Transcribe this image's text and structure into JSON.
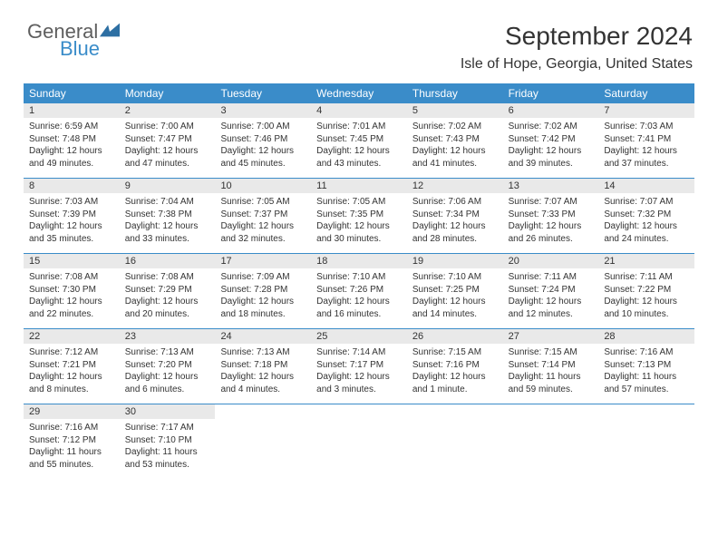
{
  "brand": {
    "word1": "General",
    "word2": "Blue",
    "color_general": "#5e5e5e",
    "color_blue": "#3a8cc9",
    "icon_fill": "#2d6fa3"
  },
  "header": {
    "month_title": "September 2024",
    "location": "Isle of Hope, Georgia, United States"
  },
  "colors": {
    "header_bg": "#3a8cc9",
    "header_text": "#ffffff",
    "daynum_bg": "#e9e9e9",
    "row_border": "#3a8cc9",
    "body_text": "#333333",
    "page_bg": "#ffffff"
  },
  "typography": {
    "month_title_fontsize": 28,
    "location_fontsize": 16,
    "dow_fontsize": 12,
    "daynum_fontsize": 11,
    "body_fontsize": 10
  },
  "days_of_week": [
    "Sunday",
    "Monday",
    "Tuesday",
    "Wednesday",
    "Thursday",
    "Friday",
    "Saturday"
  ],
  "weeks": [
    [
      {
        "n": "1",
        "sunrise": "Sunrise: 6:59 AM",
        "sunset": "Sunset: 7:48 PM",
        "day1": "Daylight: 12 hours",
        "day2": "and 49 minutes."
      },
      {
        "n": "2",
        "sunrise": "Sunrise: 7:00 AM",
        "sunset": "Sunset: 7:47 PM",
        "day1": "Daylight: 12 hours",
        "day2": "and 47 minutes."
      },
      {
        "n": "3",
        "sunrise": "Sunrise: 7:00 AM",
        "sunset": "Sunset: 7:46 PM",
        "day1": "Daylight: 12 hours",
        "day2": "and 45 minutes."
      },
      {
        "n": "4",
        "sunrise": "Sunrise: 7:01 AM",
        "sunset": "Sunset: 7:45 PM",
        "day1": "Daylight: 12 hours",
        "day2": "and 43 minutes."
      },
      {
        "n": "5",
        "sunrise": "Sunrise: 7:02 AM",
        "sunset": "Sunset: 7:43 PM",
        "day1": "Daylight: 12 hours",
        "day2": "and 41 minutes."
      },
      {
        "n": "6",
        "sunrise": "Sunrise: 7:02 AM",
        "sunset": "Sunset: 7:42 PM",
        "day1": "Daylight: 12 hours",
        "day2": "and 39 minutes."
      },
      {
        "n": "7",
        "sunrise": "Sunrise: 7:03 AM",
        "sunset": "Sunset: 7:41 PM",
        "day1": "Daylight: 12 hours",
        "day2": "and 37 minutes."
      }
    ],
    [
      {
        "n": "8",
        "sunrise": "Sunrise: 7:03 AM",
        "sunset": "Sunset: 7:39 PM",
        "day1": "Daylight: 12 hours",
        "day2": "and 35 minutes."
      },
      {
        "n": "9",
        "sunrise": "Sunrise: 7:04 AM",
        "sunset": "Sunset: 7:38 PM",
        "day1": "Daylight: 12 hours",
        "day2": "and 33 minutes."
      },
      {
        "n": "10",
        "sunrise": "Sunrise: 7:05 AM",
        "sunset": "Sunset: 7:37 PM",
        "day1": "Daylight: 12 hours",
        "day2": "and 32 minutes."
      },
      {
        "n": "11",
        "sunrise": "Sunrise: 7:05 AM",
        "sunset": "Sunset: 7:35 PM",
        "day1": "Daylight: 12 hours",
        "day2": "and 30 minutes."
      },
      {
        "n": "12",
        "sunrise": "Sunrise: 7:06 AM",
        "sunset": "Sunset: 7:34 PM",
        "day1": "Daylight: 12 hours",
        "day2": "and 28 minutes."
      },
      {
        "n": "13",
        "sunrise": "Sunrise: 7:07 AM",
        "sunset": "Sunset: 7:33 PM",
        "day1": "Daylight: 12 hours",
        "day2": "and 26 minutes."
      },
      {
        "n": "14",
        "sunrise": "Sunrise: 7:07 AM",
        "sunset": "Sunset: 7:32 PM",
        "day1": "Daylight: 12 hours",
        "day2": "and 24 minutes."
      }
    ],
    [
      {
        "n": "15",
        "sunrise": "Sunrise: 7:08 AM",
        "sunset": "Sunset: 7:30 PM",
        "day1": "Daylight: 12 hours",
        "day2": "and 22 minutes."
      },
      {
        "n": "16",
        "sunrise": "Sunrise: 7:08 AM",
        "sunset": "Sunset: 7:29 PM",
        "day1": "Daylight: 12 hours",
        "day2": "and 20 minutes."
      },
      {
        "n": "17",
        "sunrise": "Sunrise: 7:09 AM",
        "sunset": "Sunset: 7:28 PM",
        "day1": "Daylight: 12 hours",
        "day2": "and 18 minutes."
      },
      {
        "n": "18",
        "sunrise": "Sunrise: 7:10 AM",
        "sunset": "Sunset: 7:26 PM",
        "day1": "Daylight: 12 hours",
        "day2": "and 16 minutes."
      },
      {
        "n": "19",
        "sunrise": "Sunrise: 7:10 AM",
        "sunset": "Sunset: 7:25 PM",
        "day1": "Daylight: 12 hours",
        "day2": "and 14 minutes."
      },
      {
        "n": "20",
        "sunrise": "Sunrise: 7:11 AM",
        "sunset": "Sunset: 7:24 PM",
        "day1": "Daylight: 12 hours",
        "day2": "and 12 minutes."
      },
      {
        "n": "21",
        "sunrise": "Sunrise: 7:11 AM",
        "sunset": "Sunset: 7:22 PM",
        "day1": "Daylight: 12 hours",
        "day2": "and 10 minutes."
      }
    ],
    [
      {
        "n": "22",
        "sunrise": "Sunrise: 7:12 AM",
        "sunset": "Sunset: 7:21 PM",
        "day1": "Daylight: 12 hours",
        "day2": "and 8 minutes."
      },
      {
        "n": "23",
        "sunrise": "Sunrise: 7:13 AM",
        "sunset": "Sunset: 7:20 PM",
        "day1": "Daylight: 12 hours",
        "day2": "and 6 minutes."
      },
      {
        "n": "24",
        "sunrise": "Sunrise: 7:13 AM",
        "sunset": "Sunset: 7:18 PM",
        "day1": "Daylight: 12 hours",
        "day2": "and 4 minutes."
      },
      {
        "n": "25",
        "sunrise": "Sunrise: 7:14 AM",
        "sunset": "Sunset: 7:17 PM",
        "day1": "Daylight: 12 hours",
        "day2": "and 3 minutes."
      },
      {
        "n": "26",
        "sunrise": "Sunrise: 7:15 AM",
        "sunset": "Sunset: 7:16 PM",
        "day1": "Daylight: 12 hours",
        "day2": "and 1 minute."
      },
      {
        "n": "27",
        "sunrise": "Sunrise: 7:15 AM",
        "sunset": "Sunset: 7:14 PM",
        "day1": "Daylight: 11 hours",
        "day2": "and 59 minutes."
      },
      {
        "n": "28",
        "sunrise": "Sunrise: 7:16 AM",
        "sunset": "Sunset: 7:13 PM",
        "day1": "Daylight: 11 hours",
        "day2": "and 57 minutes."
      }
    ],
    [
      {
        "n": "29",
        "sunrise": "Sunrise: 7:16 AM",
        "sunset": "Sunset: 7:12 PM",
        "day1": "Daylight: 11 hours",
        "day2": "and 55 minutes."
      },
      {
        "n": "30",
        "sunrise": "Sunrise: 7:17 AM",
        "sunset": "Sunset: 7:10 PM",
        "day1": "Daylight: 11 hours",
        "day2": "and 53 minutes."
      },
      null,
      null,
      null,
      null,
      null
    ]
  ]
}
